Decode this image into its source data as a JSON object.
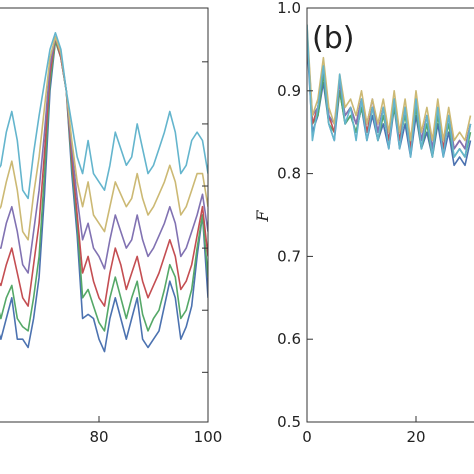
{
  "chart_data": [
    {
      "panel": "left",
      "type": "line",
      "xlim": [
        60,
        100
      ],
      "ylim": [
        0,
        1
      ],
      "grid": false,
      "x_ticks": [
        80,
        100
      ],
      "x": [
        60,
        61,
        62,
        63,
        64,
        65,
        66,
        67,
        68,
        69,
        70,
        71,
        72,
        73,
        74,
        75,
        76,
        77,
        78,
        79,
        80,
        81,
        82,
        83,
        84,
        85,
        86,
        87,
        88,
        89,
        90,
        91,
        92,
        93,
        94,
        95,
        96,
        97,
        98,
        99,
        100
      ],
      "series": [
        {
          "color": "#4C72B0",
          "values": [
            0.3,
            0.24,
            0.2,
            0.25,
            0.3,
            0.2,
            0.2,
            0.18,
            0.25,
            0.35,
            0.55,
            0.8,
            0.92,
            0.88,
            0.8,
            0.6,
            0.45,
            0.25,
            0.26,
            0.25,
            0.2,
            0.17,
            0.25,
            0.3,
            0.25,
            0.2,
            0.25,
            0.3,
            0.2,
            0.18,
            0.2,
            0.22,
            0.28,
            0.34,
            0.3,
            0.2,
            0.23,
            0.28,
            0.4,
            0.5,
            0.3
          ]
        },
        {
          "color": "#55A868",
          "values": [
            0.35,
            0.3,
            0.25,
            0.3,
            0.33,
            0.25,
            0.23,
            0.22,
            0.3,
            0.4,
            0.6,
            0.82,
            0.92,
            0.88,
            0.8,
            0.62,
            0.48,
            0.3,
            0.32,
            0.28,
            0.24,
            0.22,
            0.3,
            0.35,
            0.3,
            0.25,
            0.3,
            0.34,
            0.26,
            0.22,
            0.25,
            0.27,
            0.32,
            0.38,
            0.35,
            0.25,
            0.27,
            0.32,
            0.42,
            0.5,
            0.35
          ]
        },
        {
          "color": "#C44E52",
          "values": [
            0.4,
            0.35,
            0.33,
            0.38,
            0.42,
            0.36,
            0.3,
            0.28,
            0.38,
            0.48,
            0.65,
            0.84,
            0.93,
            0.88,
            0.8,
            0.64,
            0.5,
            0.36,
            0.4,
            0.34,
            0.3,
            0.28,
            0.36,
            0.42,
            0.38,
            0.32,
            0.36,
            0.4,
            0.34,
            0.3,
            0.33,
            0.36,
            0.4,
            0.44,
            0.4,
            0.32,
            0.34,
            0.38,
            0.45,
            0.52,
            0.4
          ]
        },
        {
          "color": "#8172B2",
          "values": [
            0.48,
            0.42,
            0.42,
            0.48,
            0.52,
            0.46,
            0.38,
            0.36,
            0.46,
            0.56,
            0.7,
            0.86,
            0.93,
            0.89,
            0.8,
            0.66,
            0.54,
            0.44,
            0.48,
            0.42,
            0.4,
            0.37,
            0.44,
            0.5,
            0.46,
            0.42,
            0.44,
            0.5,
            0.44,
            0.4,
            0.42,
            0.45,
            0.48,
            0.52,
            0.48,
            0.4,
            0.42,
            0.46,
            0.5,
            0.55,
            0.46
          ]
        },
        {
          "color": "#CCB974",
          "values": [
            0.56,
            0.5,
            0.52,
            0.58,
            0.63,
            0.56,
            0.46,
            0.44,
            0.55,
            0.64,
            0.76,
            0.88,
            0.93,
            0.89,
            0.8,
            0.68,
            0.58,
            0.52,
            0.58,
            0.5,
            0.48,
            0.46,
            0.52,
            0.58,
            0.55,
            0.52,
            0.54,
            0.6,
            0.54,
            0.5,
            0.52,
            0.55,
            0.58,
            0.62,
            0.58,
            0.5,
            0.52,
            0.56,
            0.6,
            0.6,
            0.52
          ]
        },
        {
          "color": "#64B5CD",
          "values": [
            0.66,
            0.6,
            0.62,
            0.7,
            0.75,
            0.68,
            0.56,
            0.54,
            0.65,
            0.74,
            0.82,
            0.9,
            0.94,
            0.9,
            0.8,
            0.72,
            0.64,
            0.6,
            0.68,
            0.6,
            0.58,
            0.56,
            0.62,
            0.7,
            0.66,
            0.62,
            0.64,
            0.72,
            0.66,
            0.6,
            0.62,
            0.66,
            0.7,
            0.75,
            0.7,
            0.6,
            0.62,
            0.68,
            0.7,
            0.68,
            0.6
          ]
        }
      ]
    },
    {
      "panel": "right",
      "type": "line",
      "label": "(b)",
      "ylabel": "F",
      "xlim": [
        0,
        40
      ],
      "ylim": [
        0.5,
        1.0
      ],
      "grid": false,
      "x_ticks": [
        0,
        20
      ],
      "y_ticks": [
        0.5,
        0.6,
        0.7,
        0.8,
        0.9,
        1.0
      ],
      "x": [
        0,
        1,
        2,
        3,
        4,
        5,
        6,
        7,
        8,
        9,
        10,
        11,
        12,
        13,
        14,
        15,
        16,
        17,
        18,
        19,
        20,
        21,
        22,
        23,
        24,
        25,
        26,
        27,
        28,
        29,
        30
      ],
      "series": [
        {
          "color": "#4C72B0",
          "values": [
            0.96,
            0.85,
            0.87,
            0.91,
            0.86,
            0.84,
            0.9,
            0.86,
            0.87,
            0.85,
            0.88,
            0.84,
            0.87,
            0.84,
            0.86,
            0.83,
            0.88,
            0.83,
            0.86,
            0.82,
            0.87,
            0.83,
            0.85,
            0.82,
            0.86,
            0.82,
            0.85,
            0.81,
            0.82,
            0.81,
            0.84
          ]
        },
        {
          "color": "#55A868",
          "values": [
            0.97,
            0.86,
            0.87,
            0.92,
            0.86,
            0.85,
            0.9,
            0.86,
            0.87,
            0.85,
            0.88,
            0.85,
            0.88,
            0.84,
            0.87,
            0.84,
            0.88,
            0.84,
            0.87,
            0.83,
            0.88,
            0.83,
            0.86,
            0.82,
            0.87,
            0.83,
            0.86,
            0.82,
            0.83,
            0.82,
            0.85
          ]
        },
        {
          "color": "#C44E52",
          "values": [
            0.97,
            0.86,
            0.88,
            0.93,
            0.87,
            0.85,
            0.91,
            0.87,
            0.88,
            0.86,
            0.89,
            0.85,
            0.88,
            0.85,
            0.88,
            0.84,
            0.89,
            0.84,
            0.88,
            0.83,
            0.89,
            0.84,
            0.87,
            0.83,
            0.88,
            0.83,
            0.87,
            0.83,
            0.84,
            0.83,
            0.86
          ]
        },
        {
          "color": "#8172B2",
          "values": [
            0.97,
            0.87,
            0.88,
            0.93,
            0.87,
            0.86,
            0.91,
            0.87,
            0.88,
            0.86,
            0.89,
            0.86,
            0.89,
            0.85,
            0.88,
            0.85,
            0.89,
            0.85,
            0.88,
            0.84,
            0.89,
            0.84,
            0.87,
            0.83,
            0.88,
            0.84,
            0.87,
            0.83,
            0.84,
            0.83,
            0.86
          ]
        },
        {
          "color": "#CCB974",
          "values": [
            0.98,
            0.87,
            0.89,
            0.94,
            0.88,
            0.86,
            0.92,
            0.88,
            0.89,
            0.87,
            0.9,
            0.86,
            0.89,
            0.86,
            0.89,
            0.85,
            0.9,
            0.85,
            0.89,
            0.84,
            0.9,
            0.85,
            0.88,
            0.84,
            0.89,
            0.84,
            0.88,
            0.84,
            0.85,
            0.84,
            0.87
          ]
        },
        {
          "color": "#64B5CD",
          "values": [
            0.98,
            0.84,
            0.88,
            0.93,
            0.86,
            0.84,
            0.92,
            0.86,
            0.88,
            0.84,
            0.89,
            0.84,
            0.88,
            0.84,
            0.88,
            0.83,
            0.89,
            0.83,
            0.88,
            0.82,
            0.89,
            0.83,
            0.87,
            0.82,
            0.88,
            0.82,
            0.87,
            0.82,
            0.83,
            0.82,
            0.86
          ]
        }
      ]
    }
  ]
}
